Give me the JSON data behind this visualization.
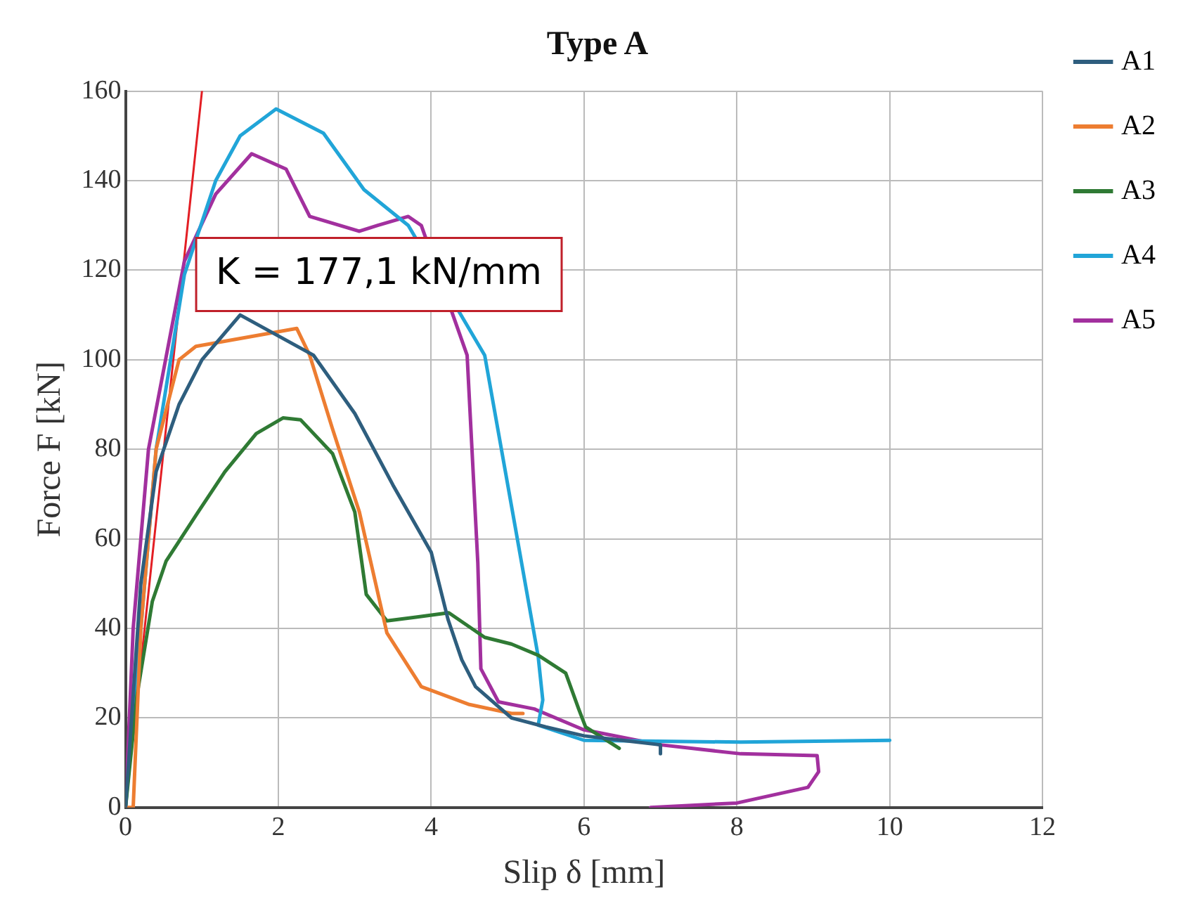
{
  "chart_data": {
    "type": "line",
    "title": "Type A",
    "xlabel": "Slip δ [mm]",
    "ylabel": "Force F [kN]",
    "xlim": [
      0,
      12
    ],
    "xticks": [
      0,
      2,
      4,
      6,
      8,
      10,
      12
    ],
    "ylim": [
      0,
      160
    ],
    "yticks": [
      0,
      20,
      40,
      60,
      80,
      100,
      120,
      140,
      160
    ],
    "grid": true,
    "legend": "right",
    "marker": "none",
    "line_style": "solid",
    "annotations": [
      "K = 177,1 kN/mm"
    ],
    "series": [
      {
        "name": "A1",
        "color": "#2e5e7e",
        "x": [
          0,
          0.2,
          0.4,
          0.7,
          1.0,
          1.5,
          2.0,
          2.46,
          3.0,
          3.5,
          4.0,
          4.22,
          4.4,
          4.58,
          5.05,
          5.5,
          6.0,
          6.5,
          7.0,
          7.0
        ],
        "values": [
          0,
          50,
          75,
          90,
          100,
          110,
          null,
          101,
          88,
          72,
          57,
          42,
          33,
          27,
          20,
          18,
          16,
          15,
          14,
          12
        ]
      },
      {
        "name": "A2",
        "color": "#ed7d31",
        "x": [
          0,
          0.1,
          0.2,
          0.4,
          0.7,
          0.92,
          1.2,
          1.6,
          2.0,
          2.24,
          2.41,
          2.7,
          3.06,
          3.42,
          3.87,
          4.5,
          5.05,
          5.2
        ],
        "values": [
          0,
          0,
          40,
          80,
          100,
          103,
          null,
          null,
          null,
          107,
          101,
          85,
          66,
          39,
          27,
          23,
          21,
          21
        ]
      },
      {
        "name": "A3",
        "color": "#2f7a34",
        "x": [
          0,
          0.15,
          0.35,
          0.53,
          0.95,
          1.3,
          1.71,
          2.06,
          2.29,
          2.71,
          3.0,
          3.15,
          3.42,
          3.8,
          4.23,
          4.7,
          5.05,
          5.4,
          5.76,
          5.93,
          6.02,
          6.46
        ],
        "values": [
          0,
          25,
          46,
          55,
          66,
          75,
          83.5,
          87,
          86.6,
          79,
          66,
          47.6,
          41.7,
          42.5,
          43.5,
          38,
          36.5,
          34,
          30,
          22,
          18,
          13.2
        ]
      },
      {
        "name": "A4",
        "color": "#21a5d8",
        "x": [
          0,
          0.2,
          0.4,
          0.77,
          1.18,
          1.5,
          1.97,
          2.59,
          3.12,
          3.7,
          4.2,
          4.7,
          5.1,
          5.4,
          5.46,
          5.4,
          6.0,
          8.05,
          10.0
        ],
        "values": [
          0,
          40,
          80,
          119,
          140,
          150,
          156,
          150.6,
          138,
          130,
          null,
          101,
          62.6,
          33.7,
          24,
          18.4,
          15,
          14.6,
          15
        ]
      },
      {
        "name": "A5",
        "color": "#a2309e",
        "x": [
          0,
          0.1,
          0.3,
          0.77,
          1.18,
          1.65,
          2.1,
          2.41,
          3.06,
          3.3,
          3.7,
          3.87,
          4.2,
          4.47,
          4.61,
          4.65,
          4.88,
          5.35,
          5.99,
          7.0,
          8.05,
          9.05,
          9.07,
          8.93,
          8.0,
          6.87
        ],
        "values": [
          0,
          40,
          80,
          122,
          137,
          146,
          142.6,
          132,
          128.7,
          130,
          132,
          130,
          null,
          101,
          54.6,
          31,
          23.6,
          22,
          17.4,
          14,
          12,
          11.6,
          8,
          4.5,
          1,
          0
        ]
      },
      {
        "type": "line",
        "color": "#e31e24",
        "x": [
          0,
          1.0
        ],
        "values": [
          0,
          160
        ]
      }
    ]
  }
}
